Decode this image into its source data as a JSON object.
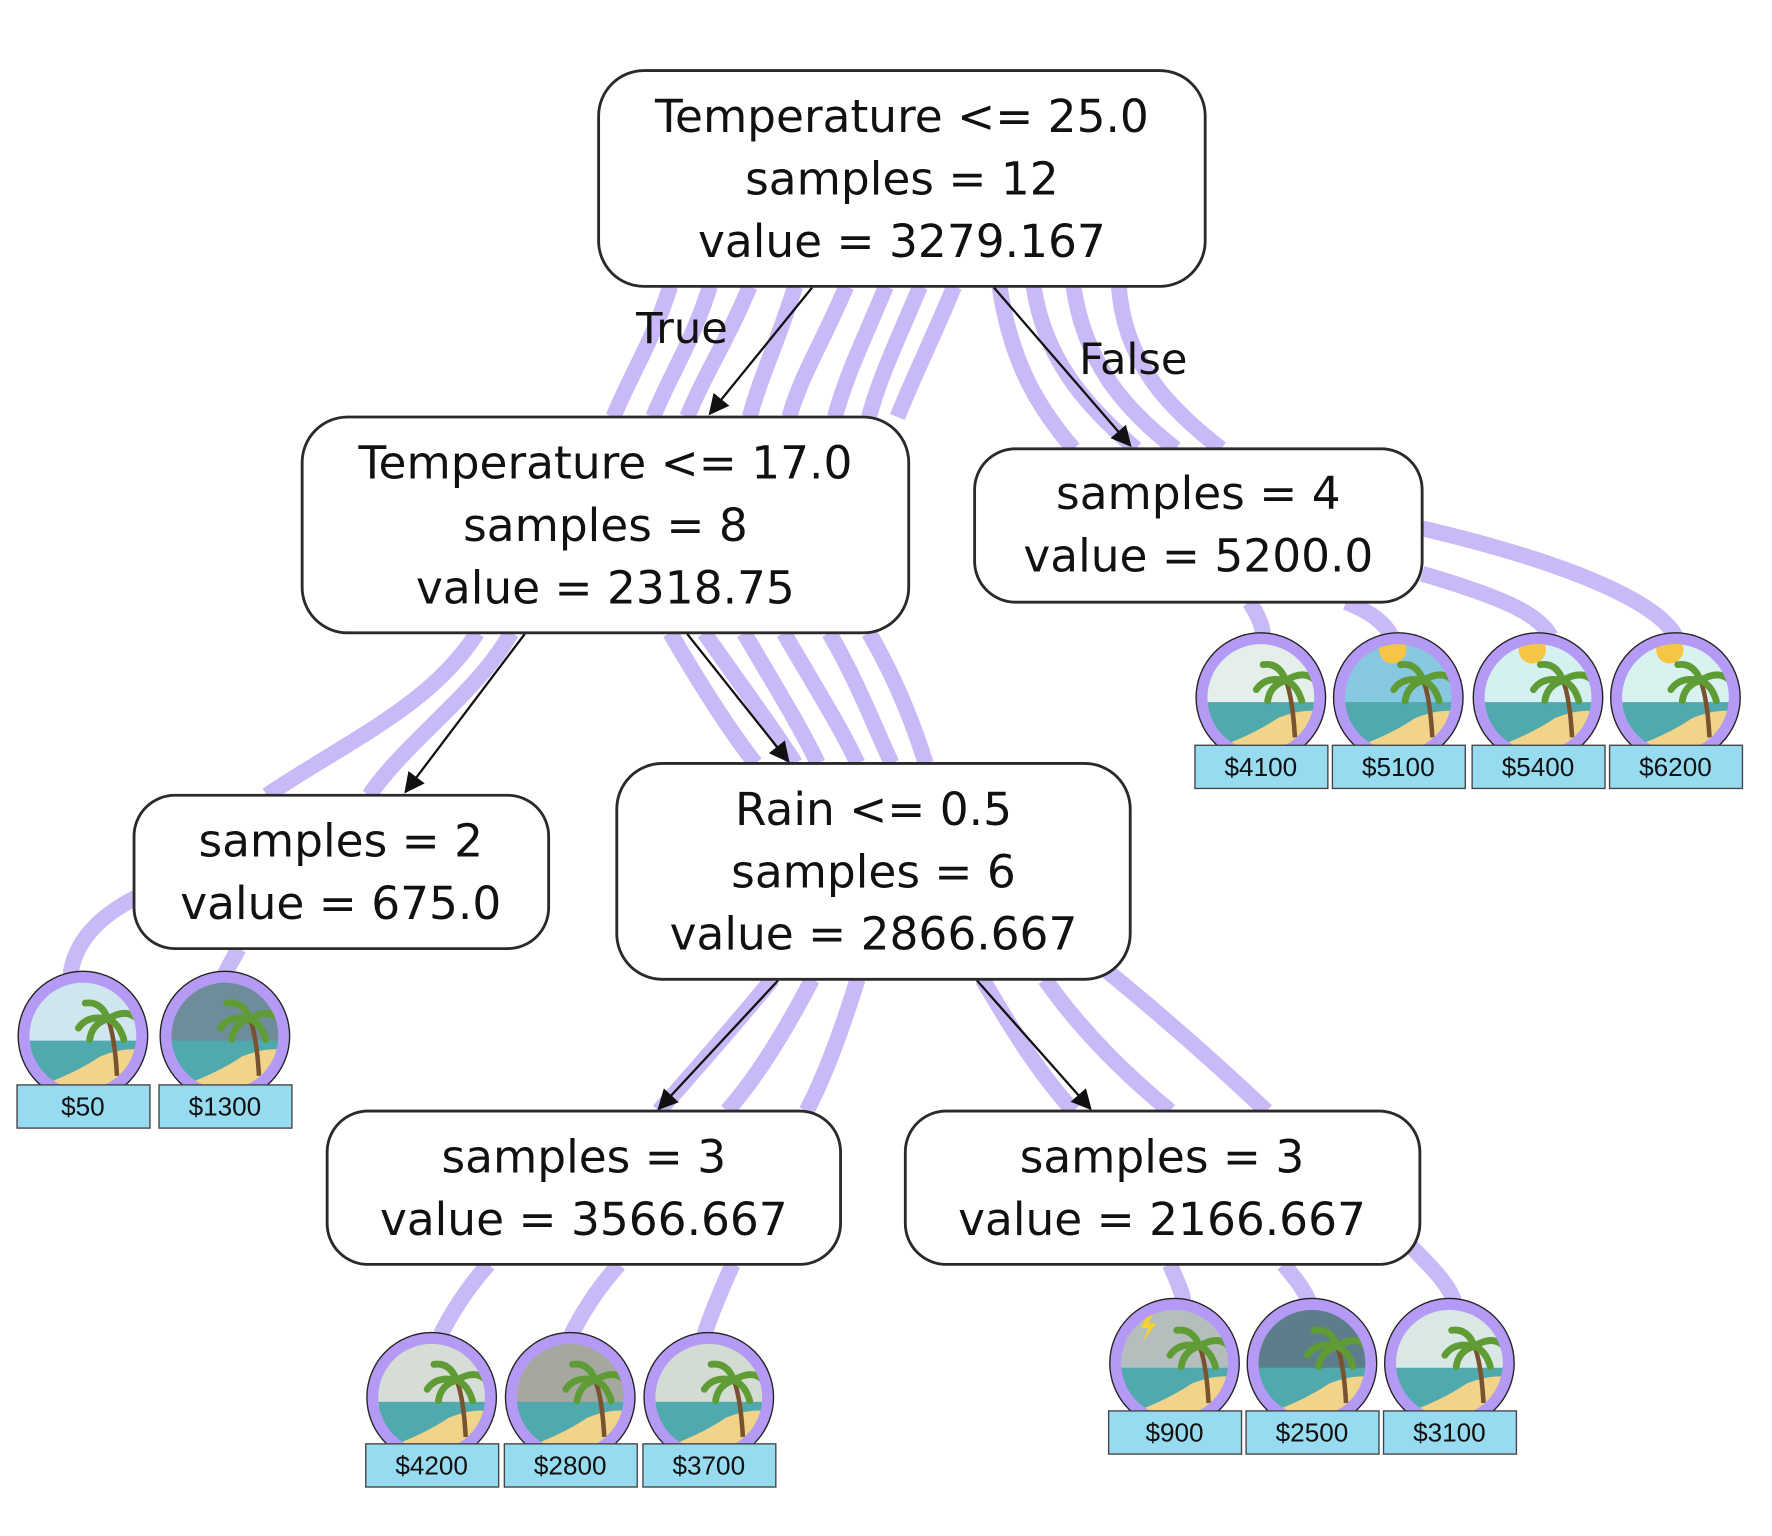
{
  "colors": {
    "ribbon": "#c6b6f7",
    "ring": "#b59af5",
    "price_bg": "#97dbf0"
  },
  "edge_labels": {
    "true_label": "True",
    "false_label": "False"
  },
  "nodes": {
    "root": [
      "Temperature <= 25.0",
      "samples = 12",
      "value = 3279.167"
    ],
    "left": [
      "Temperature <= 17.0",
      "samples = 8",
      "value = 2318.75"
    ],
    "right": [
      "samples = 4",
      "value = 5200.0"
    ],
    "left_left": [
      "samples = 2",
      "value = 675.0"
    ],
    "left_right": [
      "Rain <= 0.5",
      "samples = 6",
      "value = 2866.667"
    ],
    "left_right_left": [
      "samples = 3",
      "value = 3566.667"
    ],
    "left_right_right": [
      "samples = 3",
      "value = 2166.667"
    ]
  },
  "leaves": [
    {
      "price": "$50",
      "icon": "beach-snow-icon",
      "sky": "#cfe6ee"
    },
    {
      "price": "$1300",
      "icon": "beach-wind-icon",
      "sky": "#6e8c9a"
    },
    {
      "price": "$4100",
      "icon": "beach-cloudy-icon",
      "sky": "#e3efe8"
    },
    {
      "price": "$5100",
      "icon": "beach-sunny-icon",
      "sky": "#86c8df"
    },
    {
      "price": "$5400",
      "icon": "beach-sun-rain-icon",
      "sky": "#d5f0f0"
    },
    {
      "price": "$6200",
      "icon": "beach-sunny-icon",
      "sky": "#d8f2f0"
    },
    {
      "price": "$4200",
      "icon": "beach-overcast-icon",
      "sky": "#d6ddd6"
    },
    {
      "price": "$2800",
      "icon": "beach-fog-icon",
      "sky": "#a4a89f"
    },
    {
      "price": "$3700",
      "icon": "beach-cloudy-icon",
      "sky": "#d2dcd3"
    },
    {
      "price": "$900",
      "icon": "beach-storm-icon",
      "sky": "#b4bfbd"
    },
    {
      "price": "$2500",
      "icon": "beach-heavy-rain-icon",
      "sky": "#5c7d89"
    },
    {
      "price": "$3100",
      "icon": "beach-light-rain-icon",
      "sky": "#d9e8e4"
    }
  ]
}
